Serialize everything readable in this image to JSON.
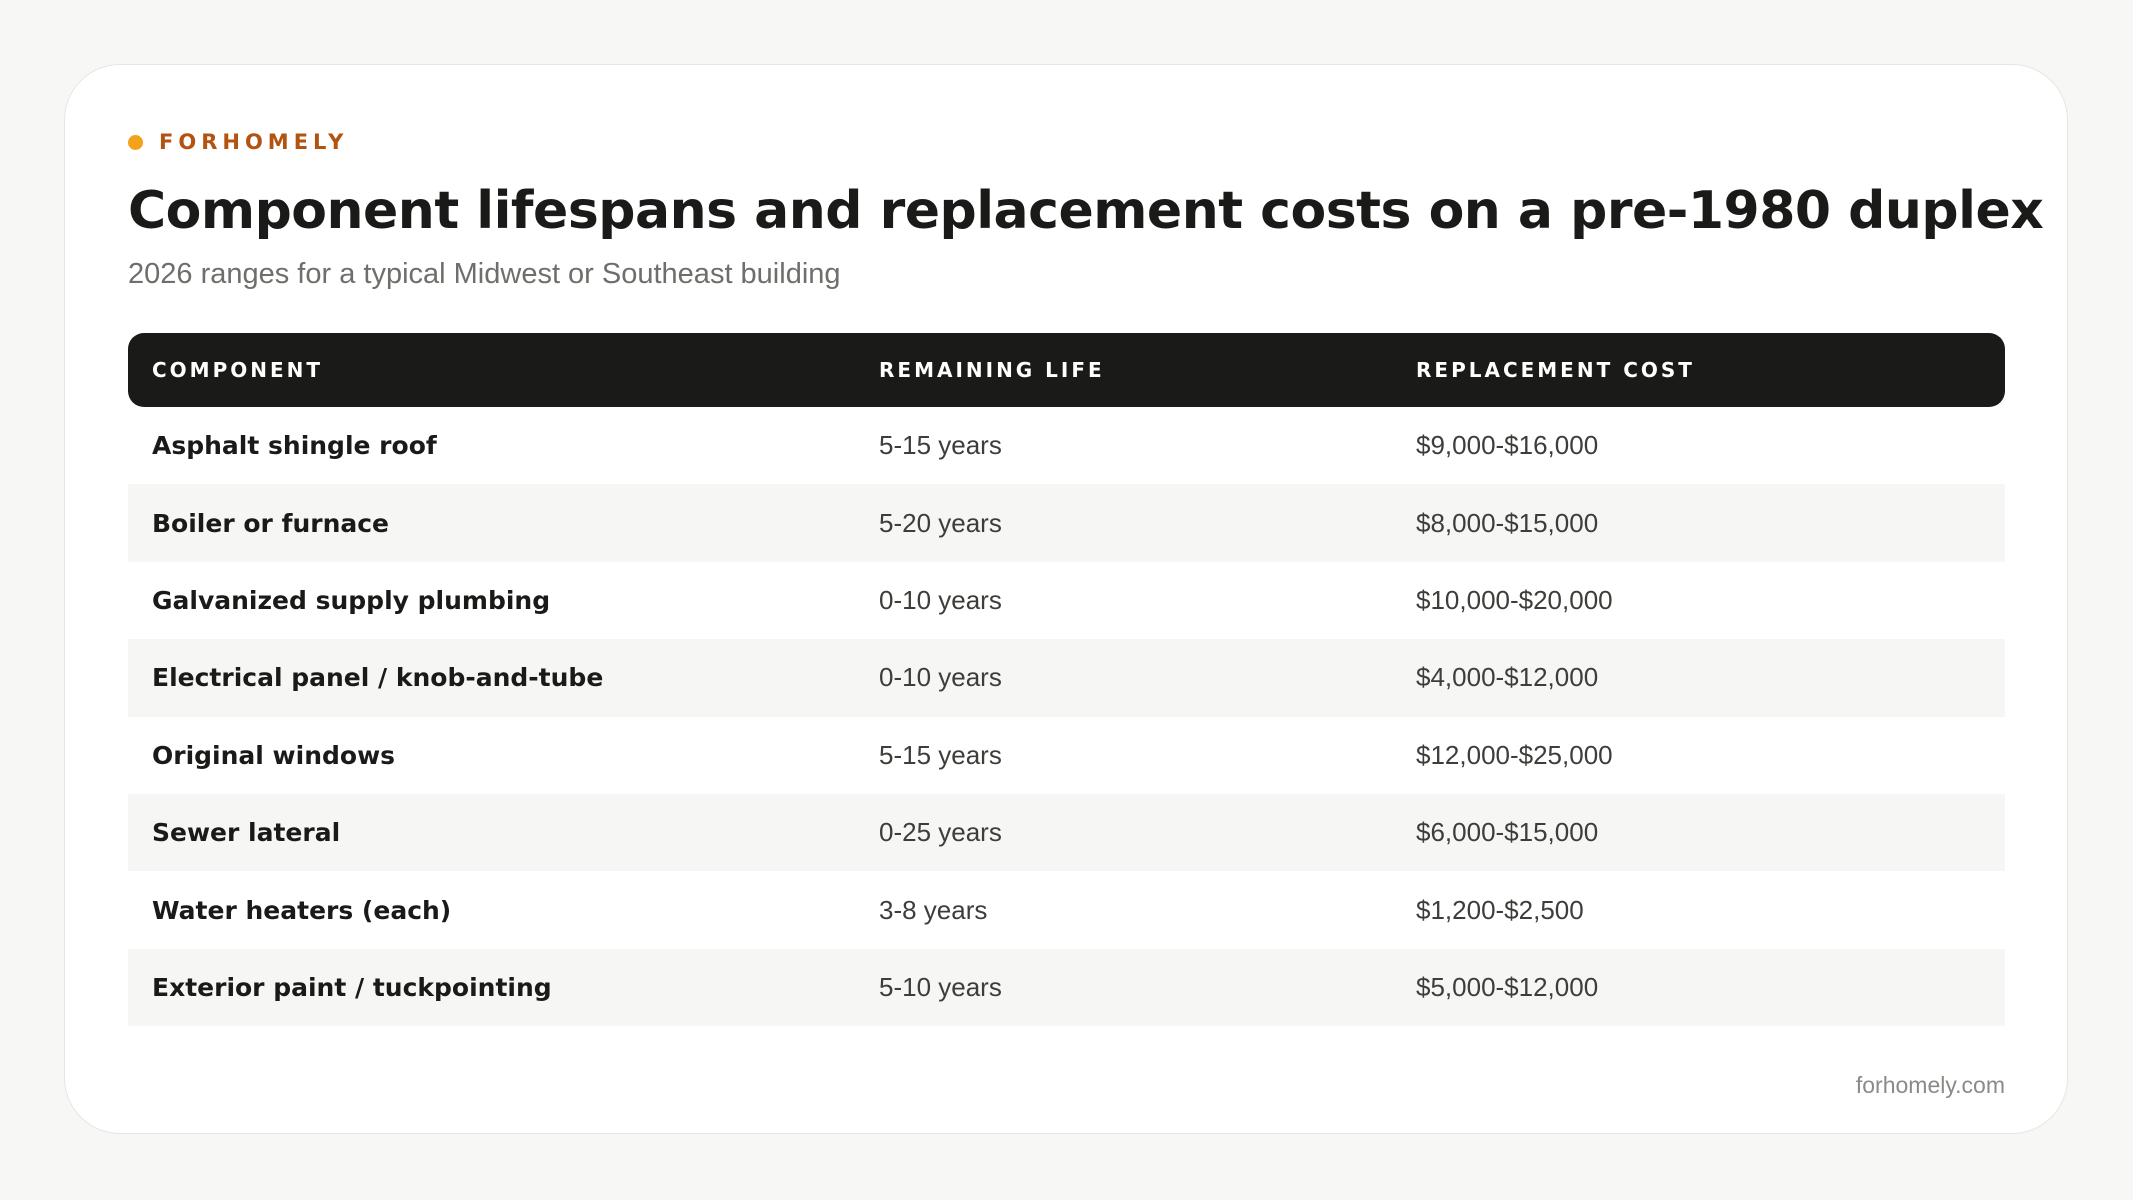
{
  "brand": {
    "name": "FORHOMELY",
    "dot_color": "#f2a31b",
    "name_color": "#b2530f"
  },
  "title": "Component lifespans and replacement costs on a pre-1980 duplex",
  "subtitle": "2026 ranges for a typical Midwest or Southeast building",
  "table": {
    "headers": [
      "COMPONENT",
      "REMAINING LIFE",
      "REPLACEMENT COST"
    ],
    "rows": [
      {
        "component": "Asphalt shingle roof",
        "life": "5-15 years",
        "cost": "$9,000-$16,000"
      },
      {
        "component": "Boiler or furnace",
        "life": "5-20 years",
        "cost": "$8,000-$15,000"
      },
      {
        "component": "Galvanized supply plumbing",
        "life": "0-10 years",
        "cost": "$10,000-$20,000"
      },
      {
        "component": "Electrical panel / knob-and-tube",
        "life": "0-10 years",
        "cost": "$4,000-$12,000"
      },
      {
        "component": "Original windows",
        "life": "5-15 years",
        "cost": "$12,000-$25,000"
      },
      {
        "component": "Sewer lateral",
        "life": "0-25 years",
        "cost": "$6,000-$15,000"
      },
      {
        "component": "Water heaters (each)",
        "life": "3-8 years",
        "cost": "$1,200-$2,500"
      },
      {
        "component": "Exterior paint / tuckpointing",
        "life": "5-10 years",
        "cost": "$5,000-$12,000"
      }
    ]
  },
  "footer": {
    "site": "forhomely.com"
  },
  "colors": {
    "page_background": "#f7f7f5",
    "card_background": "#ffffff",
    "header_background": "#1a1a18",
    "alt_row_background": "#f6f6f4"
  }
}
